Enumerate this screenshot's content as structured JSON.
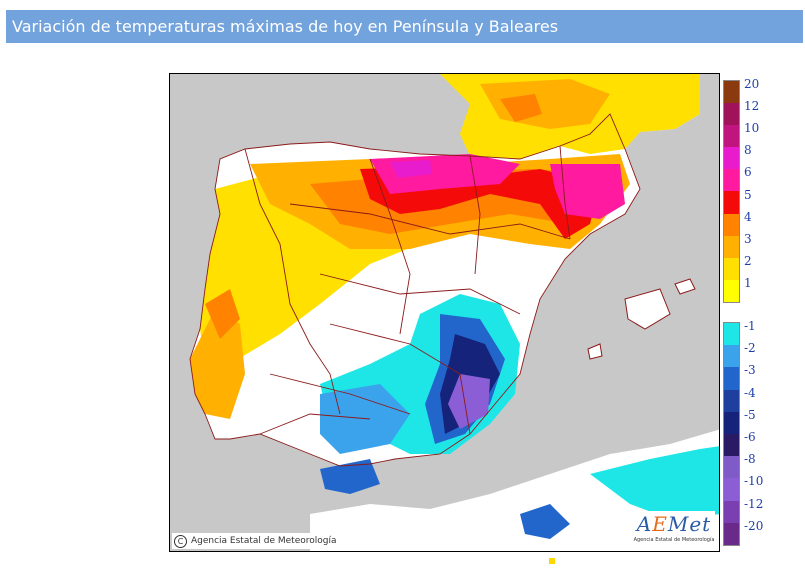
{
  "header": {
    "title": "Variación de temperaturas máximas de hoy en Península y Baleares"
  },
  "map": {
    "colors": {
      "sea": "#c8c8c8",
      "neutral": "#ffffff",
      "borders": "#8b1a1a"
    },
    "credit": "Agencia Estatal de Meteorología",
    "credit_icon": "copyright-icon",
    "logo": {
      "word_main": "A",
      "word_accent": "E",
      "word_rest": "Met",
      "subtitle": "Agencia Estatal de Meteorología"
    }
  },
  "legend": {
    "positive": [
      {
        "label": "20",
        "color": "#8b3a0f"
      },
      {
        "label": "12",
        "color": "#a0135a"
      },
      {
        "label": "10",
        "color": "#c0157f"
      },
      {
        "label": "8",
        "color": "#e81ccc"
      },
      {
        "label": "6",
        "color": "#ff1aa0"
      },
      {
        "label": "5",
        "color": "#f50a0a"
      },
      {
        "label": "4",
        "color": "#ff8200"
      },
      {
        "label": "3",
        "color": "#ffb000"
      },
      {
        "label": "2",
        "color": "#ffe000"
      },
      {
        "label": "1",
        "color": "#ffff00"
      }
    ],
    "negative": [
      {
        "label": "-1",
        "color": "#1ee6e6"
      },
      {
        "label": "-2",
        "color": "#3ba3ec"
      },
      {
        "label": "-3",
        "color": "#2266cc"
      },
      {
        "label": "-4",
        "color": "#1f3f9e"
      },
      {
        "label": "-5",
        "color": "#15237a"
      },
      {
        "label": "-6",
        "color": "#2a1a66"
      },
      {
        "label": "-8",
        "color": "#7e5bc7"
      },
      {
        "label": "-10",
        "color": "#8c5ed6"
      },
      {
        "label": "-12",
        "color": "#7a3fb0"
      },
      {
        "label": "-20",
        "color": "#6a2a8a"
      }
    ]
  }
}
